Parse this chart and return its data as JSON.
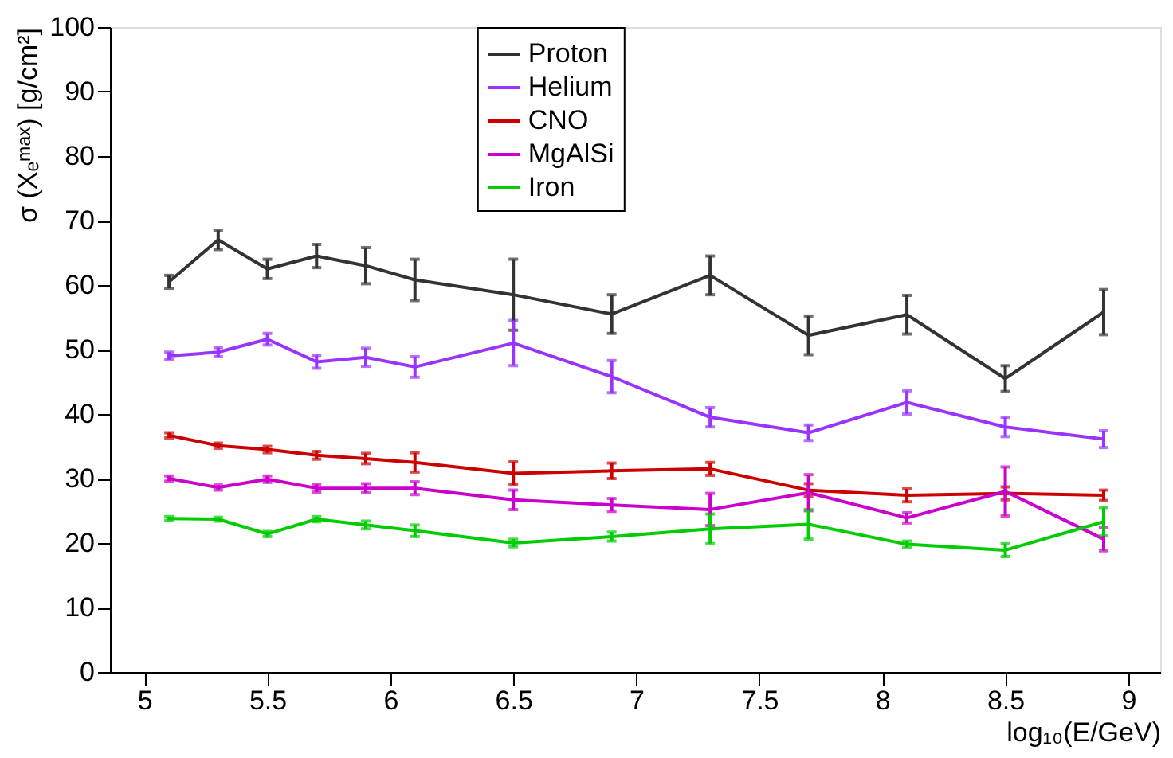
{
  "chart_data": {
    "type": "line",
    "xlabel": "log₁₀(E/GeV)",
    "ylabel": "σ (Xₑᵐᵃˣ) [g/cm²]",
    "x": [
      5.1,
      5.3,
      5.5,
      5.7,
      5.9,
      6.1,
      6.5,
      6.9,
      7.3,
      7.7,
      8.1,
      8.5,
      8.9
    ],
    "series": [
      {
        "name": "Proton",
        "color": "#333333",
        "values": [
          60.5,
          67,
          62.5,
          64.5,
          63,
          60.8,
          58.5,
          55.5,
          61.5,
          52.2,
          55.4,
          45.5,
          55.8
        ],
        "errors": [
          1,
          1.5,
          1.5,
          1.8,
          2.8,
          3.2,
          5.5,
          3,
          3,
          3,
          3,
          2,
          3.5
        ]
      },
      {
        "name": "Helium",
        "color": "#9933ff",
        "values": [
          49,
          49.6,
          51.6,
          48.1,
          48.8,
          47.3,
          51,
          45.8,
          39.5,
          37.1,
          41.8,
          38,
          36.1
        ],
        "errors": [
          0.6,
          0.7,
          0.9,
          1,
          1.4,
          1.6,
          3.5,
          2.5,
          1.5,
          1.2,
          1.8,
          1.5,
          1.3
        ]
      },
      {
        "name": "CNO",
        "color": "#cc0000",
        "values": [
          36.7,
          35.1,
          34.5,
          33.6,
          33.1,
          32.5,
          30.8,
          31.2,
          31.5,
          28.2,
          27.4,
          27.7,
          27.4
        ],
        "errors": [
          0.4,
          0.4,
          0.5,
          0.6,
          0.8,
          1.5,
          1.8,
          1.2,
          1,
          1,
          1,
          1,
          0.8
        ]
      },
      {
        "name": "MgAlSi",
        "color": "#cc00cc",
        "values": [
          30,
          28.6,
          29.9,
          28.5,
          28.5,
          28.5,
          26.7,
          25.9,
          25.2,
          27.8,
          23.9,
          28,
          20.6
        ],
        "errors": [
          0.4,
          0.4,
          0.5,
          0.6,
          0.7,
          1,
          1.5,
          1,
          2.5,
          2.8,
          0.8,
          3.8,
          1.8
        ]
      },
      {
        "name": "Iron",
        "color": "#00cc00",
        "values": [
          23.8,
          23.7,
          21.4,
          23.7,
          22.8,
          21.9,
          20,
          21,
          22.2,
          22.9,
          19.8,
          18.9,
          23.3
        ],
        "errors": [
          0.3,
          0.3,
          0.4,
          0.4,
          0.6,
          0.9,
          0.6,
          0.7,
          2.3,
          2.3,
          0.5,
          1,
          2.2
        ]
      }
    ],
    "xlim": [
      4.86,
      9.13
    ],
    "ylim": [
      0,
      100
    ],
    "xticks": [
      5,
      5.5,
      6,
      6.5,
      7,
      7.5,
      8,
      8.5,
      9
    ],
    "yticks": [
      0,
      10,
      20,
      30,
      40,
      50,
      60,
      70,
      80,
      90,
      100
    ],
    "grid": false,
    "legend": "top",
    "marker": "none",
    "line_style": "solid"
  }
}
